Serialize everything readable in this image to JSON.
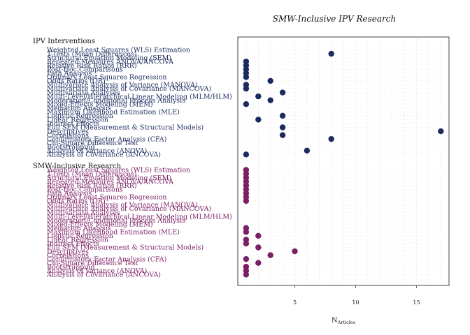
{
  "chart_data": {
    "type": "scatter",
    "title": "SMW-Inclusive IPV Research",
    "xlabel": "N",
    "xlabel_subscript": "Articles",
    "ylabel": "",
    "xlim": [
      0,
      18
    ],
    "xticks": [
      5,
      10,
      15
    ],
    "grid": "dotted",
    "categories": [
      "Weighted Least Squares (WLS) Estimation",
      "T-Tests (Mean Differences)",
      "Structural Equation Modeling (SEM)",
      "Repeated-Measures ANOVA/ANCOVA",
      "Relative Risk Ratios (RRR)",
      "Post-Hoc Comparisons",
      "Path Analysis",
      "Ordinary Least Squares Regression",
      "Odds Ratios (OR)",
      "Multivariate Analysis of Variance (MANOVA)",
      "Multivariate Analysis of Covariance (MANCOVA)",
      "Multivariate Analyses",
      "Multi-Level/Hierarchical Linear Modeling (MLM/HLM)",
      "Moderation/Conditional Process Analysis",
      "Mixed-Effects Modeling (MEM)",
      "Mediation Analysis",
      "Maximum Likelihood Estimation (MLE)",
      "Logistic Regression",
      "Linear Regression",
      "Indirect Effects",
      "Full SEM (Measurement & Structural Models)",
      "Descriptives",
      "Correlations",
      "Confirmatory Factor Analysis (CFA)",
      "Chi-Square Difference Test",
      "Bootstrapping",
      "Analysis of Variance (ANOVA)",
      "Analysis of Covariance (ANCOVA)"
    ],
    "series": [
      {
        "name": "IPV Interventions",
        "color": "#1c2b5e",
        "values": [
          null,
          8,
          null,
          1,
          1,
          1,
          1,
          1,
          3,
          1,
          1,
          4,
          2,
          3,
          1,
          null,
          null,
          4,
          2,
          null,
          4,
          17,
          4,
          8,
          null,
          null,
          6,
          1
        ]
      },
      {
        "name": "SMW-Inclusive Research",
        "color": "#7a1f63",
        "values": [
          1,
          1,
          1,
          1,
          1,
          1,
          1,
          1,
          1,
          null,
          null,
          null,
          null,
          null,
          null,
          1,
          1,
          2,
          1,
          1,
          2,
          5,
          3,
          1,
          2,
          1,
          1,
          1
        ]
      }
    ]
  }
}
